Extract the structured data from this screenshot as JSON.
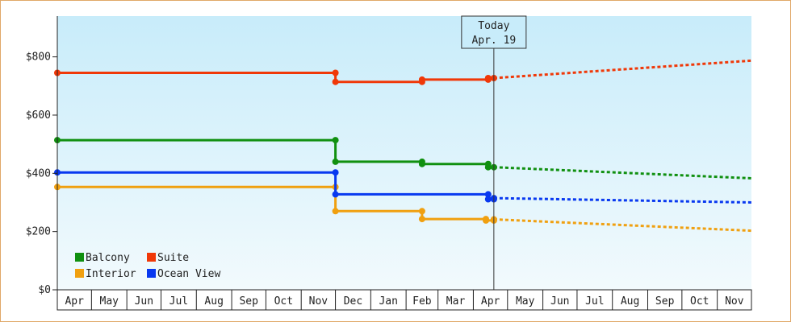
{
  "chart_data": {
    "type": "line",
    "title": "",
    "xlabel": "",
    "ylabel": "",
    "ylim": [
      0,
      940
    ],
    "y_ticks": [
      0,
      200,
      400,
      600,
      800
    ],
    "y_tick_labels": [
      "$0",
      "$200",
      "$400",
      "$600",
      "$800"
    ],
    "x_range": [
      "2013-04-01",
      "2014-12-01"
    ],
    "x_tick_labels": [
      "Apr",
      "May",
      "Jun",
      "Jul",
      "Aug",
      "Sep",
      "Oct",
      "Nov",
      "Dec",
      "Jan",
      "Feb",
      "Mar",
      "Apr",
      "May",
      "Jun",
      "Jul",
      "Aug",
      "Sep",
      "Oct",
      "Nov"
    ],
    "grid": false,
    "legend_position": "bottom-left",
    "today": {
      "line1": "Today",
      "line2": "Apr. 19",
      "date": "2014-04-19"
    },
    "series": [
      {
        "name": "Balcony",
        "color": "#109010",
        "history": [
          [
            "2013-04-01",
            514
          ],
          [
            "2013-12-01",
            514
          ],
          [
            "2013-12-01",
            440
          ],
          [
            "2014-02-15",
            440
          ],
          [
            "2014-02-15",
            432
          ],
          [
            "2014-04-14",
            432
          ],
          [
            "2014-04-14",
            421
          ],
          [
            "2014-04-19",
            421
          ]
        ],
        "forecast": [
          [
            "2014-04-19",
            421
          ],
          [
            "2014-12-01",
            383
          ]
        ]
      },
      {
        "name": "Suite",
        "color": "#f03808",
        "history": [
          [
            "2013-04-01",
            745
          ],
          [
            "2013-12-01",
            745
          ],
          [
            "2013-12-01",
            714
          ],
          [
            "2014-02-15",
            714
          ],
          [
            "2014-02-15",
            722
          ],
          [
            "2014-04-14",
            722
          ],
          [
            "2014-04-14",
            727
          ],
          [
            "2014-04-19",
            727
          ]
        ],
        "forecast": [
          [
            "2014-04-19",
            727
          ],
          [
            "2014-12-01",
            787
          ]
        ]
      },
      {
        "name": "Interior",
        "color": "#f0a010",
        "history": [
          [
            "2013-04-01",
            353
          ],
          [
            "2013-12-01",
            353
          ],
          [
            "2013-12-01",
            270
          ],
          [
            "2014-02-15",
            270
          ],
          [
            "2014-02-15",
            243
          ],
          [
            "2014-04-12",
            243
          ],
          [
            "2014-04-12",
            238
          ],
          [
            "2014-04-19",
            238
          ],
          [
            "2014-04-19",
            242
          ]
        ],
        "forecast": [
          [
            "2014-04-19",
            242
          ],
          [
            "2014-12-01",
            203
          ]
        ]
      },
      {
        "name": "Ocean View",
        "color": "#0838f0",
        "history": [
          [
            "2013-04-01",
            403
          ],
          [
            "2013-12-01",
            403
          ],
          [
            "2013-12-01",
            328
          ],
          [
            "2014-04-14",
            328
          ],
          [
            "2014-04-14",
            311
          ],
          [
            "2014-04-19",
            311
          ],
          [
            "2014-04-19",
            315
          ]
        ],
        "forecast": [
          [
            "2014-04-19",
            315
          ],
          [
            "2014-12-01",
            300
          ]
        ]
      }
    ]
  }
}
